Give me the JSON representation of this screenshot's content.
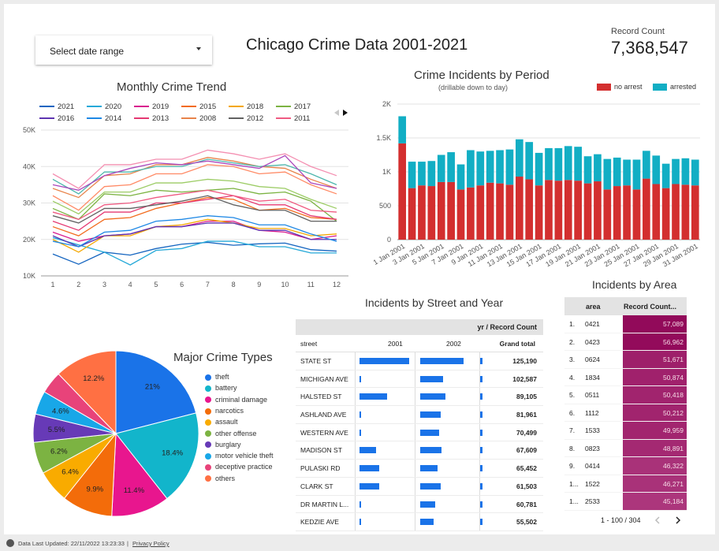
{
  "header": {
    "date_range_label": "Select date range",
    "title": "Chicago Crime Data 2001-2021",
    "record_count_label": "Record Count",
    "record_count_value": "7,368,547"
  },
  "monthly_trend": {
    "title": "Monthly Crime Trend",
    "legend": [
      {
        "name": "2021",
        "color": "#1565c0"
      },
      {
        "name": "2020",
        "color": "#26a9d8"
      },
      {
        "name": "2019",
        "color": "#d81b8f"
      },
      {
        "name": "2015",
        "color": "#f26b1d"
      },
      {
        "name": "2018",
        "color": "#f4a700"
      },
      {
        "name": "2017",
        "color": "#7cb342"
      },
      {
        "name": "2016",
        "color": "#5e35b1"
      },
      {
        "name": "2014",
        "color": "#1e88e5"
      },
      {
        "name": "2013",
        "color": "#e53972"
      },
      {
        "name": "2008",
        "color": "#e8834a"
      },
      {
        "name": "2012",
        "color": "#616161"
      },
      {
        "name": "2011",
        "color": "#ef5b82"
      }
    ]
  },
  "period_chart": {
    "title": "Crime Incidents by Period",
    "subtitle": "(drillable down to day)",
    "legend": [
      {
        "name": "no arrest",
        "color": "#d32f2f"
      },
      {
        "name": "arrested",
        "color": "#12aec4"
      }
    ]
  },
  "major_crime": {
    "title": "Major Crime Types",
    "legend": [
      {
        "name": "theft",
        "color": "#1a73e8"
      },
      {
        "name": "battery",
        "color": "#12b5cb"
      },
      {
        "name": "criminal damage",
        "color": "#e8168e"
      },
      {
        "name": "narcotics",
        "color": "#f36c0a"
      },
      {
        "name": "assault",
        "color": "#f9ab00"
      },
      {
        "name": "other offense",
        "color": "#7cb342"
      },
      {
        "name": "burglary",
        "color": "#673ab7"
      },
      {
        "name": "motor vehicle theft",
        "color": "#18a7e8"
      },
      {
        "name": "deceptive practice",
        "color": "#e8437a"
      },
      {
        "name": "others",
        "color": "#ff7043"
      }
    ]
  },
  "street_table": {
    "title": "Incidents by Street and Year",
    "header_group": "yr / Record Count",
    "col_street": "street",
    "col_2001": "2001",
    "col_2002": "2002",
    "col_total": "Grand total",
    "rows": [
      {
        "street": "STATE ST",
        "v2001": 0.98,
        "v2002": 0.84,
        "tick": 0.5,
        "total": "125,190"
      },
      {
        "street": "MICHIGAN AVE",
        "v2001": 0.03,
        "v2002": 0.44,
        "tick": 0.5,
        "total": "102,587"
      },
      {
        "street": "HALSTED ST",
        "v2001": 0.55,
        "v2002": 0.49,
        "tick": 0.5,
        "total": "89,105"
      },
      {
        "street": "ASHLAND AVE",
        "v2001": 0.03,
        "v2002": 0.4,
        "tick": 0.5,
        "total": "81,961"
      },
      {
        "street": "WESTERN AVE",
        "v2001": 0.03,
        "v2002": 0.37,
        "tick": 0.5,
        "total": "70,499"
      },
      {
        "street": "MADISON ST",
        "v2001": 0.33,
        "v2002": 0.41,
        "tick": 0.5,
        "total": "67,609"
      },
      {
        "street": "PULASKI RD",
        "v2001": 0.39,
        "v2002": 0.34,
        "tick": 0.5,
        "total": "65,452"
      },
      {
        "street": "CLARK ST",
        "v2001": 0.39,
        "v2002": 0.39,
        "tick": 0.5,
        "total": "61,503"
      },
      {
        "street": "DR MARTIN L...",
        "v2001": 0.03,
        "v2002": 0.29,
        "tick": 0.5,
        "total": "60,781"
      },
      {
        "street": "KEDZIE AVE",
        "v2001": 0.03,
        "v2002": 0.26,
        "tick": 0.5,
        "total": "55,502"
      }
    ]
  },
  "area_table": {
    "title": "Incidents by Area",
    "col_area": "area",
    "col_count": "Record Count...",
    "rows": [
      {
        "idx": "1.",
        "area": "0421",
        "count": "57,089",
        "level": 1.0
      },
      {
        "idx": "2.",
        "area": "0423",
        "count": "56,962",
        "level": 0.99
      },
      {
        "idx": "3.",
        "area": "0624",
        "count": "51,671",
        "level": 0.84
      },
      {
        "idx": "4.",
        "area": "1834",
        "count": "50,874",
        "level": 0.82
      },
      {
        "idx": "5.",
        "area": "0511",
        "count": "50,418",
        "level": 0.8
      },
      {
        "idx": "6.",
        "area": "1112",
        "count": "50,212",
        "level": 0.8
      },
      {
        "idx": "7.",
        "area": "1533",
        "count": "49,959",
        "level": 0.79
      },
      {
        "idx": "8.",
        "area": "0823",
        "count": "48,891",
        "level": 0.76
      },
      {
        "idx": "9.",
        "area": "0414",
        "count": "46,322",
        "level": 0.69
      },
      {
        "idx": "1...",
        "area": "1522",
        "count": "46,271",
        "level": 0.69
      },
      {
        "idx": "1...",
        "area": "2533",
        "count": "45,184",
        "level": 0.66
      }
    ],
    "pagination": "1 - 100 / 304"
  },
  "footer": {
    "updated": "Data Last Updated: 22/11/2022 13:23:33",
    "separator": "|",
    "privacy": "Privacy Policy"
  },
  "chart_data": [
    {
      "type": "line",
      "title": "Monthly Crime Trend",
      "x": [
        1,
        2,
        3,
        4,
        5,
        6,
        7,
        8,
        9,
        10,
        11,
        12
      ],
      "ylim": [
        10000,
        50000
      ],
      "yticks": [
        "10K",
        "20K",
        "30K",
        "40K",
        "50K"
      ],
      "series": [
        {
          "name": "2021",
          "values": [
            16000,
            13200,
            16500,
            15700,
            17500,
            18700,
            19200,
            18400,
            18800,
            19000,
            17200,
            16800
          ]
        },
        {
          "name": "2020",
          "values": [
            20500,
            18500,
            16500,
            13000,
            17000,
            17500,
            19500,
            19500,
            18000,
            18000,
            16300,
            16300
          ]
        },
        {
          "name": "2019",
          "values": [
            22000,
            19500,
            21000,
            21500,
            23500,
            23500,
            25000,
            25000,
            22500,
            22000,
            20000,
            21000
          ]
        },
        {
          "name": "2015",
          "values": [
            23500,
            21000,
            25500,
            26000,
            28500,
            30000,
            31500,
            31000,
            28000,
            28500,
            26000,
            25500
          ]
        },
        {
          "name": "2018",
          "values": [
            20000,
            16500,
            21000,
            21000,
            23500,
            24000,
            25500,
            24500,
            23000,
            23000,
            21000,
            21500
          ]
        },
        {
          "name": "2017",
          "values": [
            28500,
            25500,
            32500,
            32000,
            33500,
            33000,
            33500,
            34000,
            32500,
            33000,
            30500,
            25000
          ]
        },
        {
          "name": "2016",
          "values": [
            21000,
            18000,
            21000,
            21500,
            23500,
            23500,
            24500,
            24500,
            22500,
            22500,
            20000,
            20000
          ]
        },
        {
          "name": "2014",
          "values": [
            19500,
            18000,
            22000,
            22500,
            25000,
            25500,
            26500,
            26000,
            24000,
            24000,
            21500,
            19500
          ]
        },
        {
          "name": "2013",
          "values": [
            25000,
            22500,
            27500,
            27500,
            30000,
            30000,
            31000,
            32000,
            29500,
            29500,
            26500,
            25500
          ]
        },
        {
          "name": "2008",
          "values": [
            34000,
            31500,
            37500,
            38000,
            40500,
            40500,
            42500,
            41500,
            40000,
            39500,
            36500,
            34000
          ]
        },
        {
          "name": "2012",
          "values": [
            26500,
            24500,
            28500,
            28500,
            29500,
            30500,
            32000,
            29500,
            28000,
            28000,
            25000,
            25000
          ]
        },
        {
          "name": "2011",
          "values": [
            27500,
            25500,
            29500,
            30000,
            31500,
            32500,
            33500,
            32000,
            30500,
            31000,
            28000,
            27500
          ]
        },
        {
          "name": "",
          "values": [
            38000,
            34000,
            40500,
            40500,
            42000,
            42000,
            44500,
            43500,
            42000,
            43500,
            40000,
            37500
          ]
        },
        {
          "name": "",
          "values": [
            36500,
            32500,
            38500,
            38500,
            40000,
            40000,
            42000,
            41000,
            40000,
            40500,
            38000,
            35000
          ]
        },
        {
          "name": "",
          "values": [
            32000,
            28000,
            34500,
            35000,
            38000,
            38000,
            40500,
            40000,
            38000,
            38500,
            35000,
            32500
          ]
        },
        {
          "name": "",
          "values": [
            35000,
            33500,
            37500,
            39500,
            41000,
            40500,
            41500,
            40500,
            39500,
            43000,
            35500,
            34000
          ]
        },
        {
          "name": "",
          "values": [
            30500,
            27000,
            33000,
            33000,
            35500,
            35500,
            36500,
            36000,
            34500,
            34000,
            31000,
            28500
          ]
        }
      ]
    },
    {
      "type": "bar",
      "title": "Crime Incidents by Period",
      "stacked": true,
      "ylim": [
        0,
        2000
      ],
      "yticks": [
        "0",
        "500",
        "1K",
        "1.5K",
        "2K"
      ],
      "categories": [
        "1 Jan 2001",
        "2 Jan 2001",
        "3 Jan 2001",
        "4 Jan 2001",
        "5 Jan 2001",
        "6 Jan 2001",
        "7 Jan 2001",
        "8 Jan 2001",
        "9 Jan 2001",
        "10 Jan 2001",
        "11 Jan 2001",
        "12 Jan 2001",
        "13 Jan 2001",
        "14 Jan 2001",
        "15 Jan 2001",
        "16 Jan 2001",
        "17 Jan 2001",
        "18 Jan 2001",
        "19 Jan 2001",
        "20 Jan 2001",
        "21 Jan 2001",
        "22 Jan 2001",
        "23 Jan 2001",
        "24 Jan 2001",
        "25 Jan 2001",
        "26 Jan 2001",
        "27 Jan 2001",
        "28 Jan 2001",
        "29 Jan 2001",
        "30 Jan 2001",
        "31 Jan 2001"
      ],
      "labeled_ticks": [
        "1 Jan 2001",
        "3 Jan 2001",
        "5 Jan 2001",
        "7 Jan 2001",
        "9 Jan 2001",
        "11 Jan 2001",
        "13 Jan 2001",
        "15 Jan 2001",
        "17 Jan 2001",
        "19 Jan 2001",
        "21 Jan 2001",
        "23 Jan 2001",
        "25 Jan 2001",
        "27 Jan 2001",
        "29 Jan 2001",
        "31 Jan 2001"
      ],
      "series": [
        {
          "name": "no arrest",
          "values": [
            1420,
            760,
            800,
            790,
            850,
            850,
            740,
            770,
            800,
            840,
            830,
            810,
            930,
            890,
            800,
            880,
            870,
            880,
            870,
            830,
            860,
            740,
            790,
            800,
            740,
            900,
            820,
            760,
            820,
            810,
            800
          ]
        },
        {
          "name": "arrested",
          "values": [
            400,
            390,
            350,
            370,
            400,
            440,
            370,
            550,
            500,
            470,
            490,
            520,
            550,
            550,
            480,
            470,
            480,
            500,
            500,
            400,
            400,
            450,
            420,
            380,
            440,
            410,
            420,
            360,
            370,
            390,
            380
          ]
        }
      ]
    },
    {
      "type": "pie",
      "title": "Major Crime Types",
      "series": [
        {
          "name": "theft",
          "value": 21.0
        },
        {
          "name": "battery",
          "value": 18.4
        },
        {
          "name": "criminal damage",
          "value": 11.4
        },
        {
          "name": "narcotics",
          "value": 9.9
        },
        {
          "name": "assault",
          "value": 6.4
        },
        {
          "name": "other offense",
          "value": 6.2
        },
        {
          "name": "burglary",
          "value": 5.5
        },
        {
          "name": "motor vehicle theft",
          "value": 4.6
        },
        {
          "name": "deceptive practice",
          "value": 4.4
        },
        {
          "name": "others",
          "value": 12.2
        }
      ],
      "labels": [
        "21%",
        "18.4%",
        "11.4%",
        "9.9%",
        "6.4%",
        "6.2%",
        "5.5%",
        "4.6%",
        "",
        "12.2%"
      ]
    }
  ]
}
